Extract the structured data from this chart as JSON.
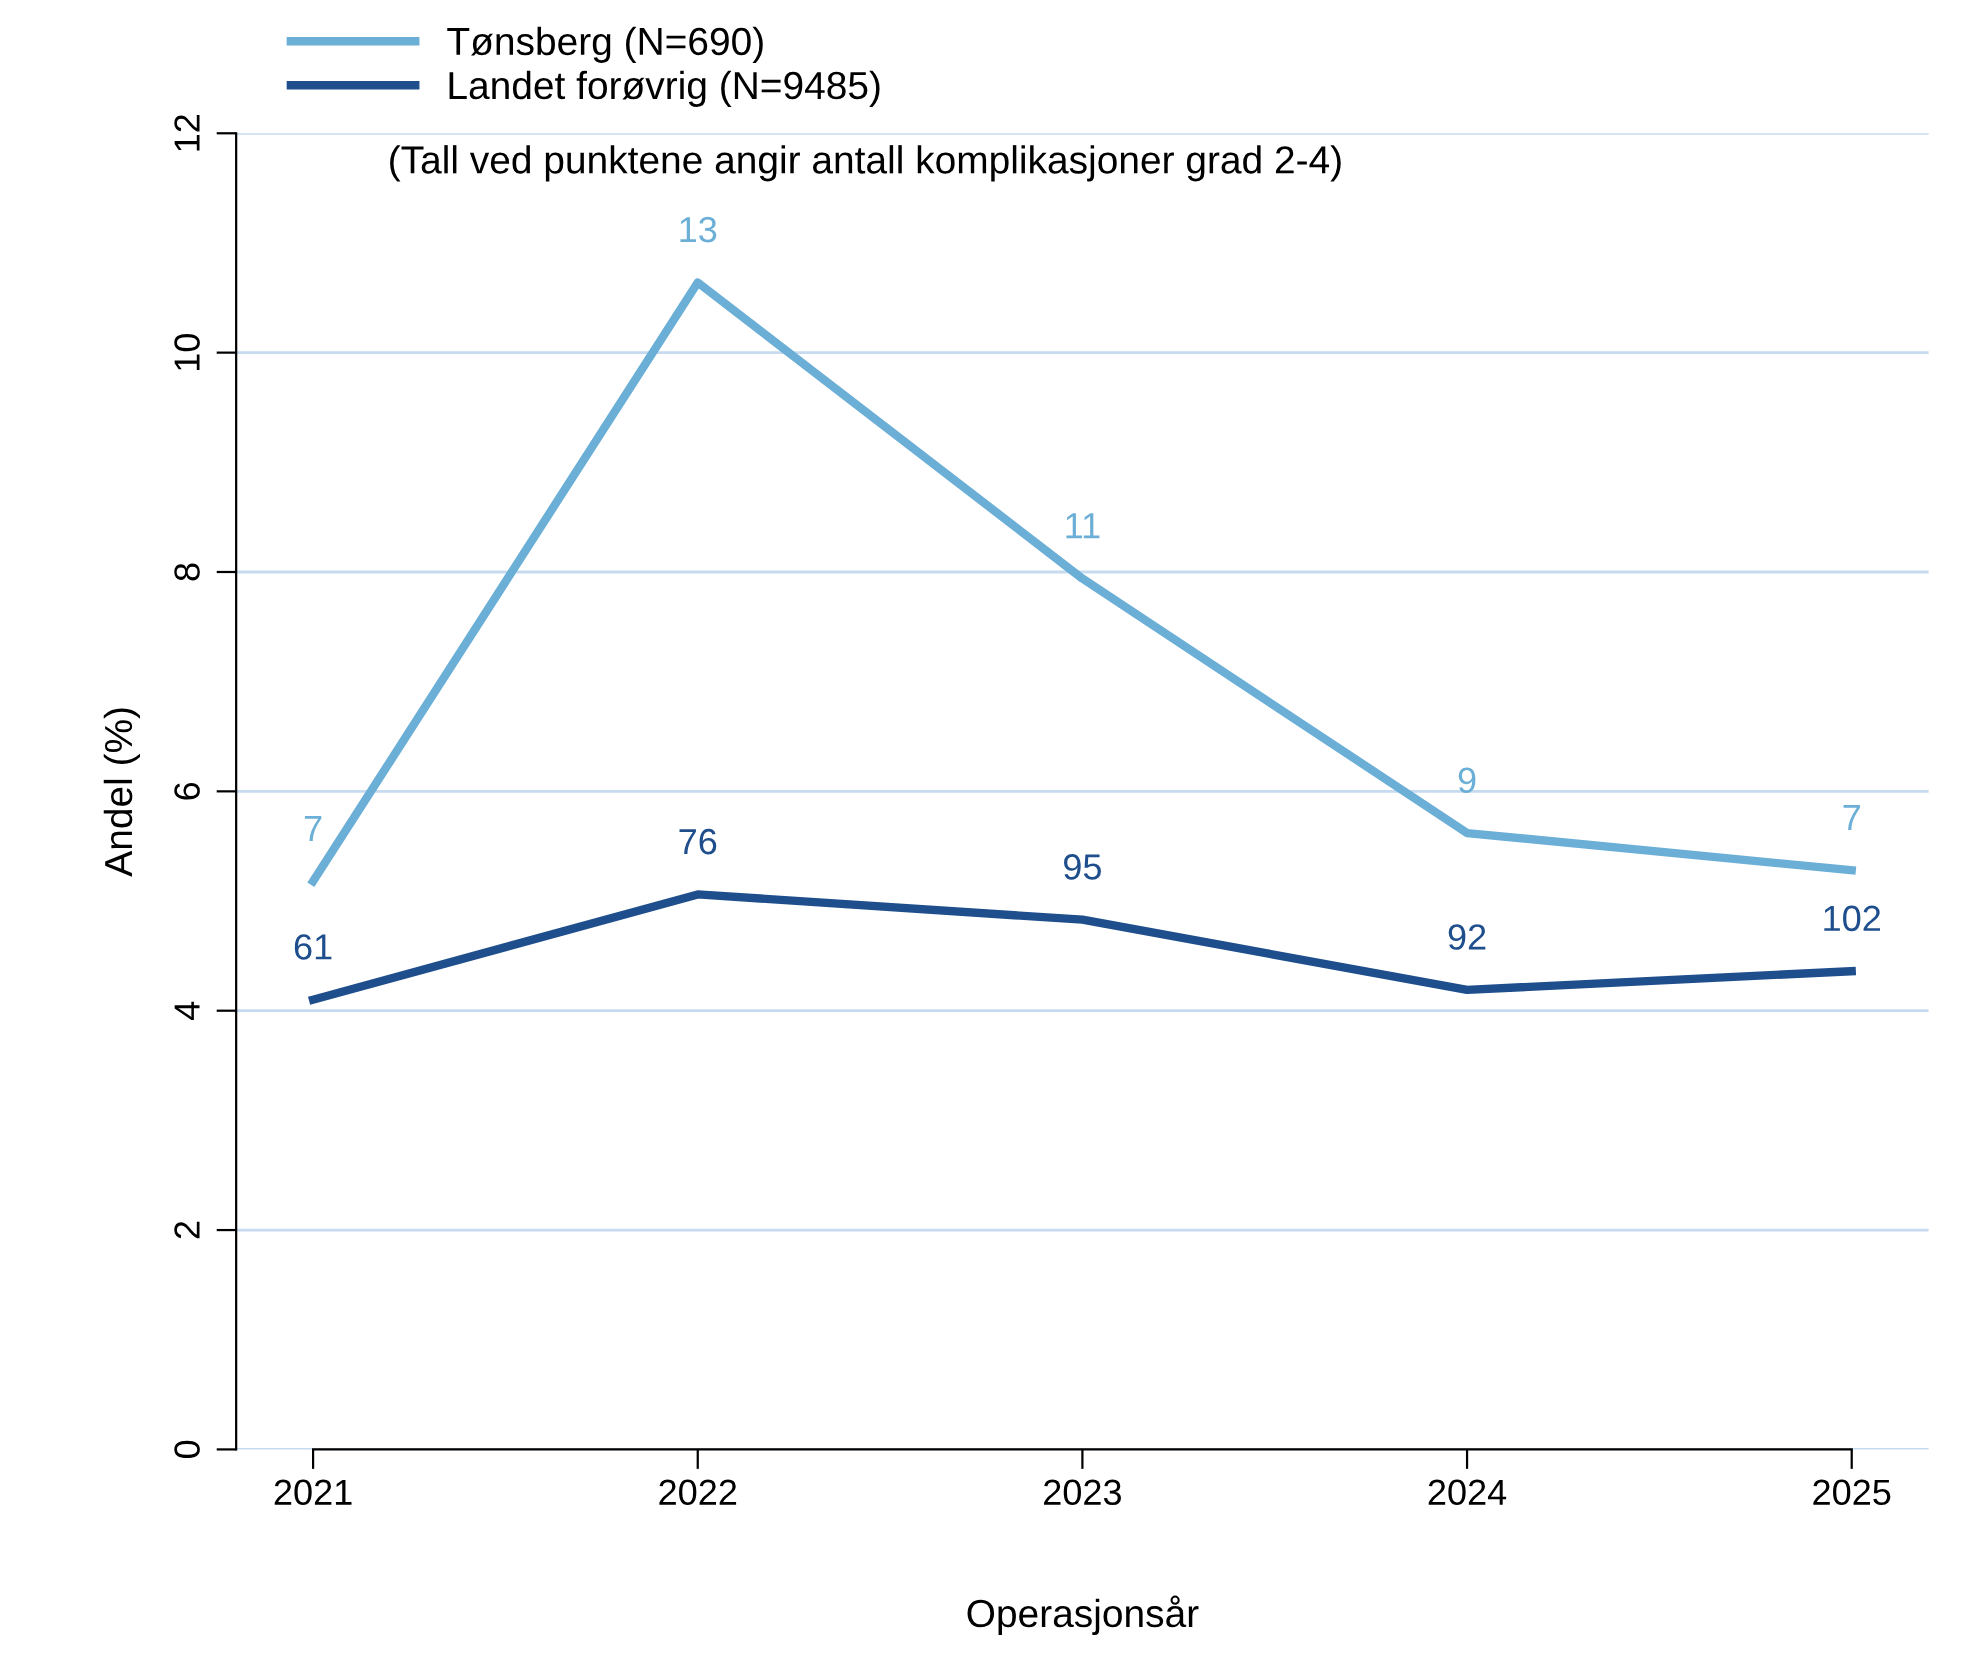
{
  "chart_data": {
    "type": "line",
    "xlabel": "Operasjonsår",
    "ylabel": "Andel (%)",
    "categories": [
      "2021",
      "2022",
      "2023",
      "2024",
      "2025"
    ],
    "series": [
      {
        "name": "Tønsberg (N=690)",
        "color": "#6baed6",
        "values": [
          5.18,
          10.64,
          7.94,
          5.62,
          5.28
        ]
      },
      {
        "name": "Landet forøvrig (N=9485)",
        "color": "#1f4e8c",
        "values": [
          4.1,
          5.06,
          4.83,
          4.19,
          4.36
        ]
      }
    ],
    "ylim": [
      0,
      12
    ],
    "yticks": [
      0,
      2,
      4,
      6,
      8,
      10,
      12
    ],
    "grid": "y",
    "legend": "top left",
    "marker": "none",
    "line_style": "solid",
    "annotations": [
      "(Tall ved punktene angir antall komplikasjoner grad 2-4)",
      {
        "text": "7",
        "x": "2021",
        "y": 5.18
      },
      {
        "text": "13",
        "x": "2022",
        "y": 10.64
      },
      {
        "text": "11",
        "x": "2023",
        "y": 7.94
      },
      {
        "text": "9",
        "x": "2024",
        "y": 5.62
      },
      {
        "text": "7",
        "x": "2025",
        "y": 5.28
      },
      {
        "text": "61",
        "x": "2021",
        "y": 4.1
      },
      {
        "text": "76",
        "x": "2022",
        "y": 5.06
      },
      {
        "text": "95",
        "x": "2023",
        "y": 4.83
      },
      {
        "text": "92",
        "x": "2024",
        "y": 4.19
      },
      {
        "text": "102",
        "x": "2025",
        "y": 4.36
      }
    ]
  }
}
